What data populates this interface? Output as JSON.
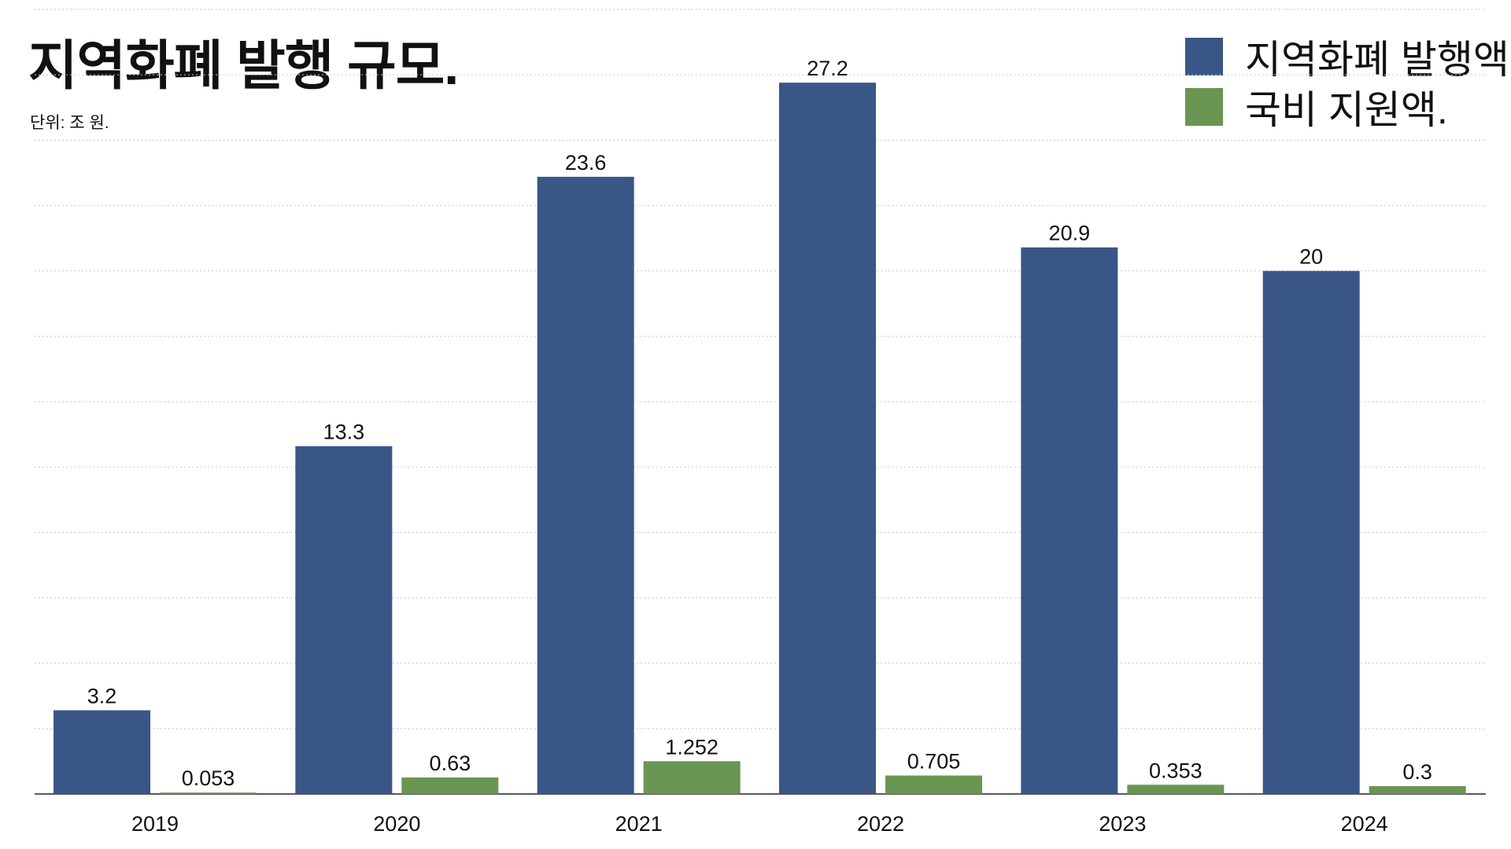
{
  "colors": {
    "issuance": "#3a5686",
    "support": "#6a9552",
    "grid": "#c8c8c8",
    "axis": "#222222"
  },
  "chart_data": {
    "type": "bar",
    "title": "지역화폐 발행 규모.",
    "subtitle": "단위: 조 원.",
    "categories": [
      "2019",
      "2020",
      "2021",
      "2022",
      "2023",
      "2024"
    ],
    "series": [
      {
        "name": "지역화폐 발행액.",
        "values": [
          3.2,
          13.3,
          23.6,
          27.2,
          20.9,
          20
        ]
      },
      {
        "name": "국비 지원액.",
        "values": [
          0.053,
          0.63,
          1.252,
          0.705,
          0.353,
          0.3
        ]
      }
    ],
    "value_labels": [
      [
        "3.2",
        "13.3",
        "23.6",
        "27.2",
        "20.9",
        "20"
      ],
      [
        "0.053",
        "0.63",
        "1.252",
        "0.705",
        "0.353",
        "0.3"
      ]
    ],
    "ylim": [
      0,
      30
    ],
    "grid": true,
    "legend_position": "top-right"
  }
}
